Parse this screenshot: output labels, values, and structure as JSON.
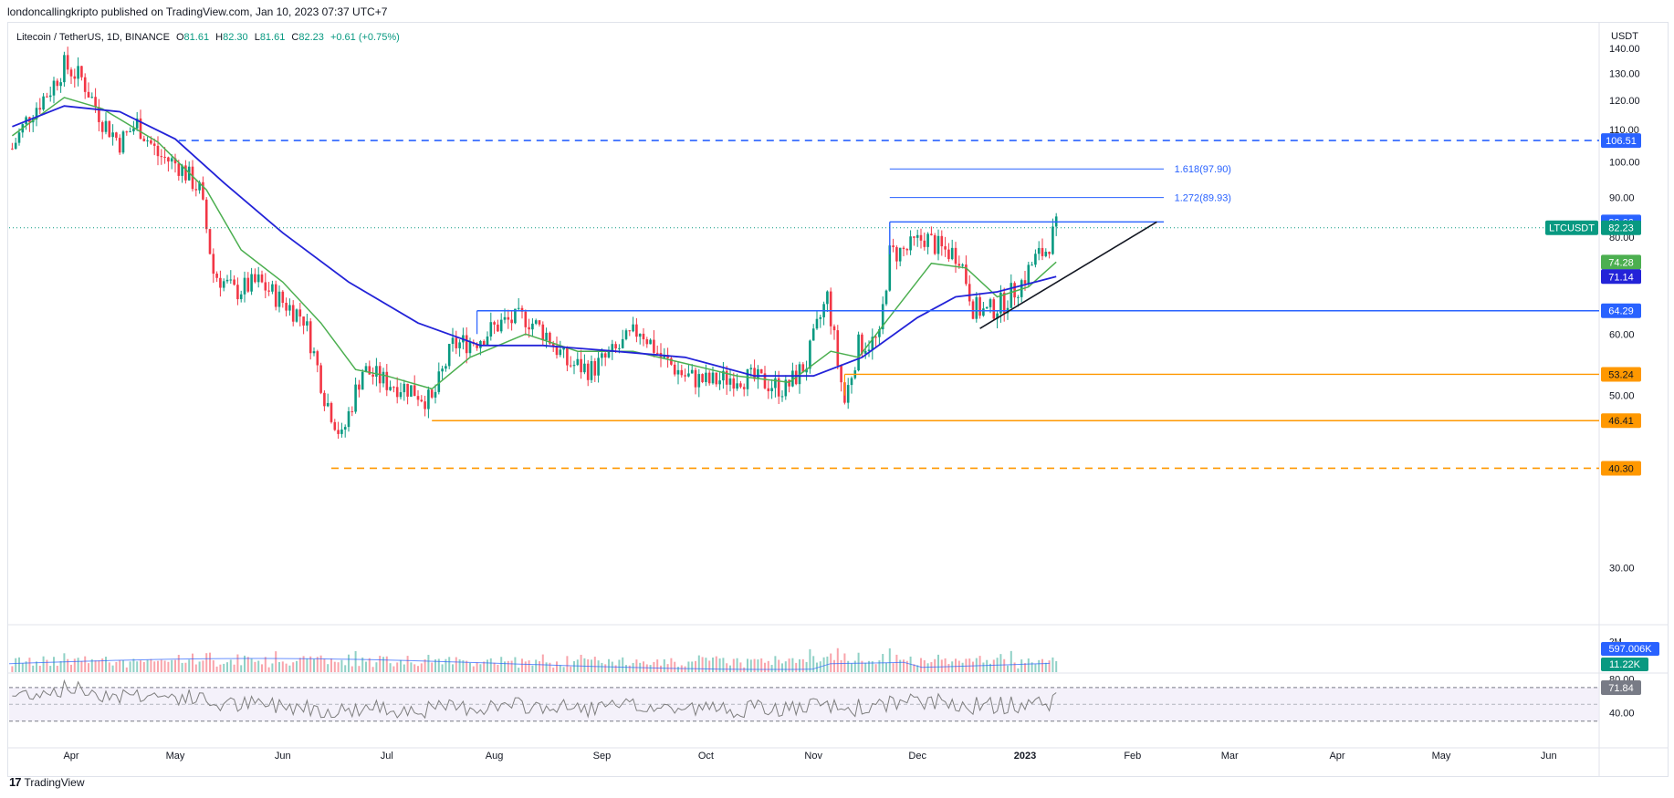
{
  "header": {
    "published": "londoncallingkripto published on TradingView.com, Jan 10, 2023 07:37 UTC+7"
  },
  "legend": {
    "symbol": "Litecoin / TetherUS, 1D, BINANCE",
    "o_label": "O",
    "o": "81.61",
    "h_label": "H",
    "h": "82.30",
    "l_label": "L",
    "l": "81.61",
    "c_label": "C",
    "c": "82.23",
    "change": "+0.61 (+0.75%)"
  },
  "currency": "USDT",
  "footer": {
    "brand": "TradingView",
    "logo": "tradingview-logo-icon"
  },
  "colors": {
    "up": "#089981",
    "down": "#f23645",
    "ema_fast": "#4caf50",
    "ema_slow": "#2323d8",
    "blue_line": "#2962ff",
    "orange_line": "#ff9800",
    "rsi": "#7e7e7e",
    "rsi_band": "#ede7f6"
  },
  "chart_data": [
    {
      "type": "candlestick",
      "symbol": "LTCUSDT",
      "ylim": [
        25,
        145
      ],
      "log_scale": true,
      "y_ticks": [
        "140.00",
        "130.00",
        "120.00",
        "110.00",
        "100.00",
        "90.00",
        "80.00",
        "60.00",
        "50.00",
        "30.00"
      ],
      "x_ticks": [
        "Apr",
        "May",
        "Jun",
        "Jul",
        "Aug",
        "Sep",
        "Oct",
        "Nov",
        "Dec",
        "2023",
        "Feb",
        "Mar",
        "Apr",
        "May",
        "Jun"
      ],
      "close_series": [
        {
          "date": "2022-03-15",
          "close": 104
        },
        {
          "date": "2022-03-20",
          "close": 115
        },
        {
          "date": "2022-03-26",
          "close": 124
        },
        {
          "date": "2022-03-30",
          "close": 133
        },
        {
          "date": "2022-04-04",
          "close": 128
        },
        {
          "date": "2022-04-10",
          "close": 113
        },
        {
          "date": "2022-04-15",
          "close": 106
        },
        {
          "date": "2022-04-20",
          "close": 112
        },
        {
          "date": "2022-04-26",
          "close": 102
        },
        {
          "date": "2022-05-02",
          "close": 99
        },
        {
          "date": "2022-05-08",
          "close": 92
        },
        {
          "date": "2022-05-12",
          "close": 72
        },
        {
          "date": "2022-05-18",
          "close": 68
        },
        {
          "date": "2022-05-25",
          "close": 70
        },
        {
          "date": "2022-06-01",
          "close": 66
        },
        {
          "date": "2022-06-07",
          "close": 63
        },
        {
          "date": "2022-06-13",
          "close": 50
        },
        {
          "date": "2022-06-18",
          "close": 44
        },
        {
          "date": "2022-06-24",
          "close": 54
        },
        {
          "date": "2022-07-01",
          "close": 52
        },
        {
          "date": "2022-07-08",
          "close": 51
        },
        {
          "date": "2022-07-14",
          "close": 49
        },
        {
          "date": "2022-07-20",
          "close": 58
        },
        {
          "date": "2022-07-27",
          "close": 59
        },
        {
          "date": "2022-08-03",
          "close": 62
        },
        {
          "date": "2022-08-10",
          "close": 63
        },
        {
          "date": "2022-08-16",
          "close": 60
        },
        {
          "date": "2022-08-22",
          "close": 55
        },
        {
          "date": "2022-08-29",
          "close": 54
        },
        {
          "date": "2022-09-05",
          "close": 57
        },
        {
          "date": "2022-09-12",
          "close": 61
        },
        {
          "date": "2022-09-18",
          "close": 56
        },
        {
          "date": "2022-09-25",
          "close": 53
        },
        {
          "date": "2022-10-02",
          "close": 52
        },
        {
          "date": "2022-10-10",
          "close": 53
        },
        {
          "date": "2022-10-18",
          "close": 52
        },
        {
          "date": "2022-10-24",
          "close": 51
        },
        {
          "date": "2022-10-30",
          "close": 55
        },
        {
          "date": "2022-11-05",
          "close": 67
        },
        {
          "date": "2022-11-08",
          "close": 55
        },
        {
          "date": "2022-11-10",
          "close": 49
        },
        {
          "date": "2022-11-14",
          "close": 58
        },
        {
          "date": "2022-11-20",
          "close": 59
        },
        {
          "date": "2022-11-23",
          "close": 76
        },
        {
          "date": "2022-11-28",
          "close": 77
        },
        {
          "date": "2022-12-03",
          "close": 80
        },
        {
          "date": "2022-12-08",
          "close": 77
        },
        {
          "date": "2022-12-13",
          "close": 76
        },
        {
          "date": "2022-12-17",
          "close": 65
        },
        {
          "date": "2022-12-21",
          "close": 64
        },
        {
          "date": "2022-12-26",
          "close": 66
        },
        {
          "date": "2022-12-31",
          "close": 70
        },
        {
          "date": "2023-01-04",
          "close": 75
        },
        {
          "date": "2023-01-07",
          "close": 77
        },
        {
          "date": "2023-01-10",
          "close": 82.23
        }
      ],
      "ema_fast_series": [
        {
          "date": "2022-03-15",
          "value": 108
        },
        {
          "date": "2022-03-30",
          "value": 121
        },
        {
          "date": "2022-04-10",
          "value": 117
        },
        {
          "date": "2022-04-26",
          "value": 106
        },
        {
          "date": "2022-05-10",
          "value": 92
        },
        {
          "date": "2022-05-20",
          "value": 77
        },
        {
          "date": "2022-06-01",
          "value": 70
        },
        {
          "date": "2022-06-12",
          "value": 62
        },
        {
          "date": "2022-06-22",
          "value": 54
        },
        {
          "date": "2022-07-01",
          "value": 53
        },
        {
          "date": "2022-07-14",
          "value": 51
        },
        {
          "date": "2022-07-25",
          "value": 56
        },
        {
          "date": "2022-08-10",
          "value": 60
        },
        {
          "date": "2022-08-25",
          "value": 57
        },
        {
          "date": "2022-09-10",
          "value": 57
        },
        {
          "date": "2022-09-25",
          "value": 55
        },
        {
          "date": "2022-10-10",
          "value": 53
        },
        {
          "date": "2022-10-25",
          "value": 52
        },
        {
          "date": "2022-11-06",
          "value": 57
        },
        {
          "date": "2022-11-14",
          "value": 56
        },
        {
          "date": "2022-11-24",
          "value": 64
        },
        {
          "date": "2022-12-05",
          "value": 74
        },
        {
          "date": "2022-12-15",
          "value": 73
        },
        {
          "date": "2022-12-24",
          "value": 67
        },
        {
          "date": "2023-01-02",
          "value": 69
        },
        {
          "date": "2023-01-10",
          "value": 74.28
        }
      ],
      "ema_slow_series": [
        {
          "date": "2022-03-15",
          "value": 111
        },
        {
          "date": "2022-03-30",
          "value": 118
        },
        {
          "date": "2022-04-15",
          "value": 116
        },
        {
          "date": "2022-05-01",
          "value": 107
        },
        {
          "date": "2022-05-15",
          "value": 94
        },
        {
          "date": "2022-06-01",
          "value": 81
        },
        {
          "date": "2022-06-20",
          "value": 70
        },
        {
          "date": "2022-07-10",
          "value": 62
        },
        {
          "date": "2022-07-28",
          "value": 58
        },
        {
          "date": "2022-08-15",
          "value": 58
        },
        {
          "date": "2022-09-05",
          "value": 57
        },
        {
          "date": "2022-09-25",
          "value": 56
        },
        {
          "date": "2022-10-15",
          "value": 53
        },
        {
          "date": "2022-11-01",
          "value": 53
        },
        {
          "date": "2022-11-15",
          "value": 56
        },
        {
          "date": "2022-12-01",
          "value": 63
        },
        {
          "date": "2022-12-12",
          "value": 67
        },
        {
          "date": "2022-12-24",
          "value": 68
        },
        {
          "date": "2023-01-10",
          "value": 71.14
        }
      ],
      "horizontal_levels": [
        {
          "value": 106.51,
          "label": "106.51",
          "style": "dashed",
          "color": "#2962ff",
          "from": "2022-05-02"
        },
        {
          "value": 83.66,
          "label": "83.66",
          "style": "solid",
          "color": "#2962ff",
          "from": "2022-11-23",
          "to": "2023-02-10"
        },
        {
          "value": 64.29,
          "label": "64.29",
          "style": "solid",
          "color": "#2962ff",
          "from": "2022-07-27"
        },
        {
          "value": 53.24,
          "label": "53.24",
          "style": "solid",
          "color": "#ff9800",
          "from": "2022-11-10"
        },
        {
          "value": 46.41,
          "label": "46.41",
          "style": "solid",
          "color": "#ff9800",
          "from": "2022-07-14"
        },
        {
          "value": 40.3,
          "label": "40.30",
          "style": "dashed",
          "color": "#ff9800",
          "from": "2022-06-15"
        }
      ],
      "fib_levels": [
        {
          "value": 97.9,
          "label": "1.618(97.90)"
        },
        {
          "value": 89.93,
          "label": "1.272(89.93)"
        }
      ],
      "trendline": {
        "from": {
          "date": "2022-12-19",
          "value": 61
        },
        "to": {
          "date": "2023-02-08",
          "value": 83.66
        }
      },
      "price_labels": [
        {
          "value": 82.23,
          "text": "82.23",
          "tag": "LTCUSDT",
          "color": "#089981"
        },
        {
          "value": 74.28,
          "text": "74.28",
          "color": "#4caf50"
        },
        {
          "value": 71.14,
          "text": "71.14",
          "color": "#2323d8"
        }
      ]
    },
    {
      "type": "bar",
      "name": "volume",
      "labels": [
        "597.006K",
        "11.22K"
      ],
      "tick": "2M"
    },
    {
      "type": "line",
      "name": "RSI",
      "y_ticks": [
        "80.00",
        "40.00"
      ],
      "last_value": "71.84",
      "band": [
        30,
        70
      ],
      "ylim": [
        20,
        85
      ]
    }
  ]
}
